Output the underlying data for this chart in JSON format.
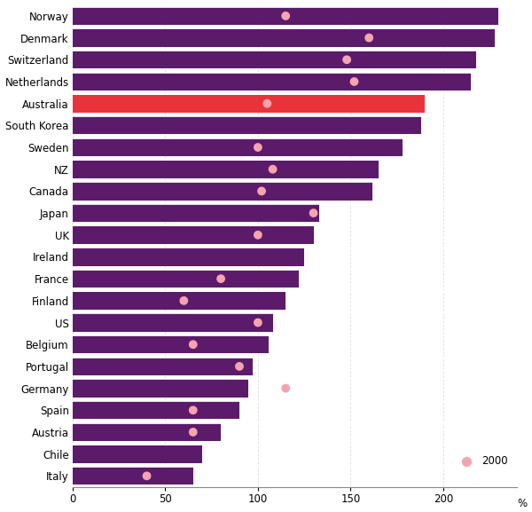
{
  "countries": [
    "Norway",
    "Denmark",
    "Switzerland",
    "Netherlands",
    "Australia",
    "South Korea",
    "Sweden",
    "NZ",
    "Canada",
    "Japan",
    "UK",
    "Ireland",
    "France",
    "Finland",
    "US",
    "Belgium",
    "Portugal",
    "Germany",
    "Spain",
    "Austria",
    "Chile",
    "Italy"
  ],
  "bar_values": [
    230,
    228,
    218,
    215,
    190,
    188,
    178,
    165,
    162,
    133,
    130,
    125,
    122,
    115,
    108,
    106,
    97,
    95,
    90,
    80,
    70,
    65
  ],
  "dot_values": [
    115,
    160,
    148,
    152,
    105,
    null,
    100,
    108,
    102,
    130,
    100,
    null,
    80,
    60,
    100,
    65,
    90,
    115,
    65,
    65,
    null,
    40
  ],
  "bar_color_normal": "#5c1a6b",
  "bar_color_australia": "#e8333a",
  "dot_color": "#f4a4b0",
  "background_color": "#ffffff",
  "xlim": [
    0,
    240
  ],
  "xticks": [
    0,
    50,
    100,
    150,
    200
  ],
  "legend_label": "2000"
}
